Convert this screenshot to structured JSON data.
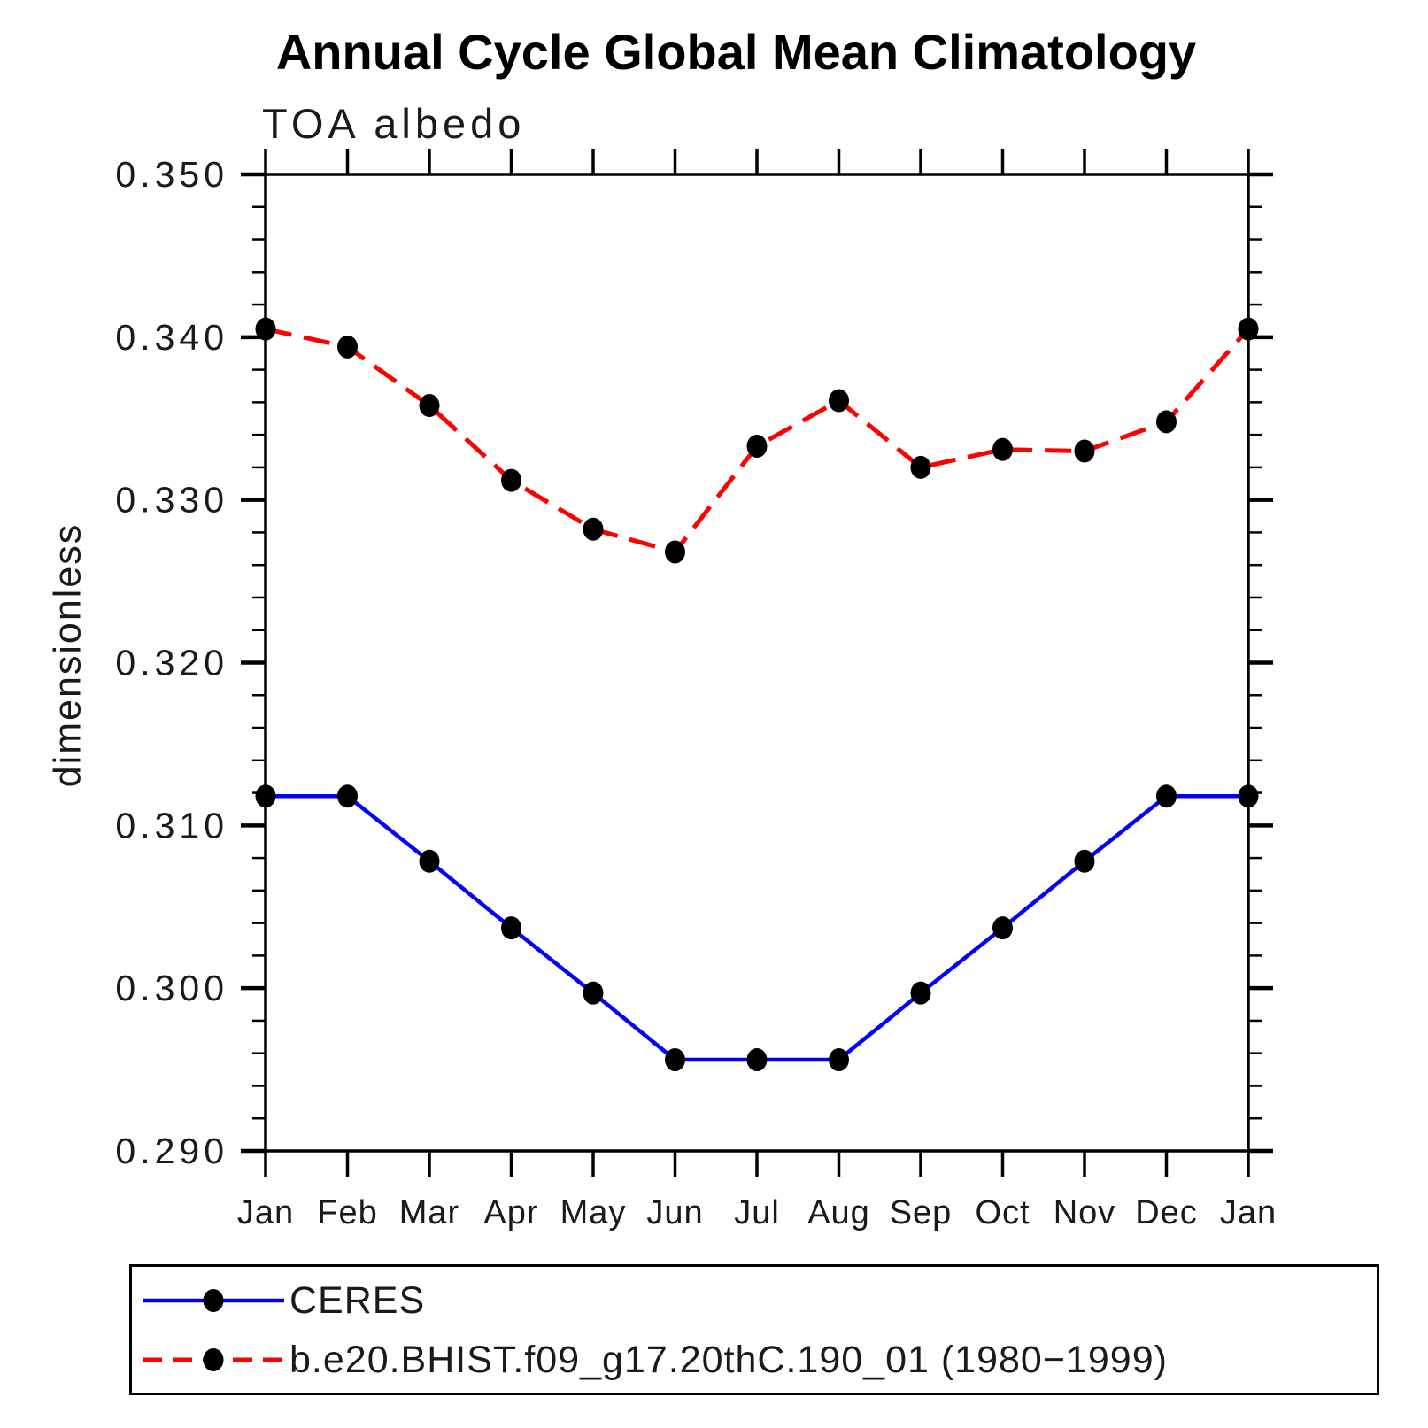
{
  "title": "Annual Cycle Global Mean Climatology",
  "subtitle": "TOA albedo",
  "y_axis": {
    "label": "dimensionless",
    "tick_labels": [
      "0.350",
      "0.340",
      "0.330",
      "0.320",
      "0.310",
      "0.300",
      "0.290"
    ],
    "min": 0.29,
    "max": 0.35,
    "major_step": 0.01,
    "minor_step": 0.002
  },
  "x_axis": {
    "categories": [
      "Jan",
      "Feb",
      "Mar",
      "Apr",
      "May",
      "Jun",
      "Jul",
      "Aug",
      "Sep",
      "Oct",
      "Nov",
      "Dec",
      "Jan"
    ]
  },
  "legend": {
    "items": [
      {
        "label": "CERES",
        "color": "#0000ff",
        "style": "solid",
        "marker_color": "#000000"
      },
      {
        "label": "b.e20.BHIST.f09_g17.20thC.190_01 (1980−1999)",
        "color": "#ff0000",
        "style": "dashed",
        "marker_color": "#000000"
      }
    ]
  },
  "colors": {
    "axis": "#000000",
    "text": "#1a1a1a",
    "background": "#ffffff",
    "ceres_line": "#0000ff",
    "model_line": "#ff0000",
    "marker": "#000000"
  },
  "chart_data": {
    "type": "line",
    "title": "TOA albedo",
    "ylabel": "dimensionless",
    "categories": [
      "Jan",
      "Feb",
      "Mar",
      "Apr",
      "May",
      "Jun",
      "Jul",
      "Aug",
      "Sep",
      "Oct",
      "Nov",
      "Dec",
      "Jan"
    ],
    "series": [
      {
        "name": "CERES",
        "color": "#0000ff",
        "line_style": "solid",
        "marker": "circle",
        "marker_color": "#000000",
        "values": [
          0.3118,
          0.3118,
          0.3078,
          0.3037,
          0.2997,
          0.2956,
          0.2956,
          0.2956,
          0.2997,
          0.3037,
          0.3078,
          0.3118,
          0.3118
        ]
      },
      {
        "name": "b.e20.BHIST.f09_g17.20thC.190_01 (1980−1999)",
        "color": "#ff0000",
        "line_style": "dashed",
        "marker": "circle",
        "marker_color": "#000000",
        "values": [
          0.3405,
          0.3394,
          0.3358,
          0.3312,
          0.3282,
          0.3268,
          0.3333,
          0.3361,
          0.332,
          0.3331,
          0.333,
          0.3348,
          0.3405
        ]
      }
    ],
    "ylim": [
      0.29,
      0.35
    ],
    "y_major_step": 0.01,
    "y_minor_step": 0.002,
    "grid": false,
    "legend_position": "bottom"
  }
}
